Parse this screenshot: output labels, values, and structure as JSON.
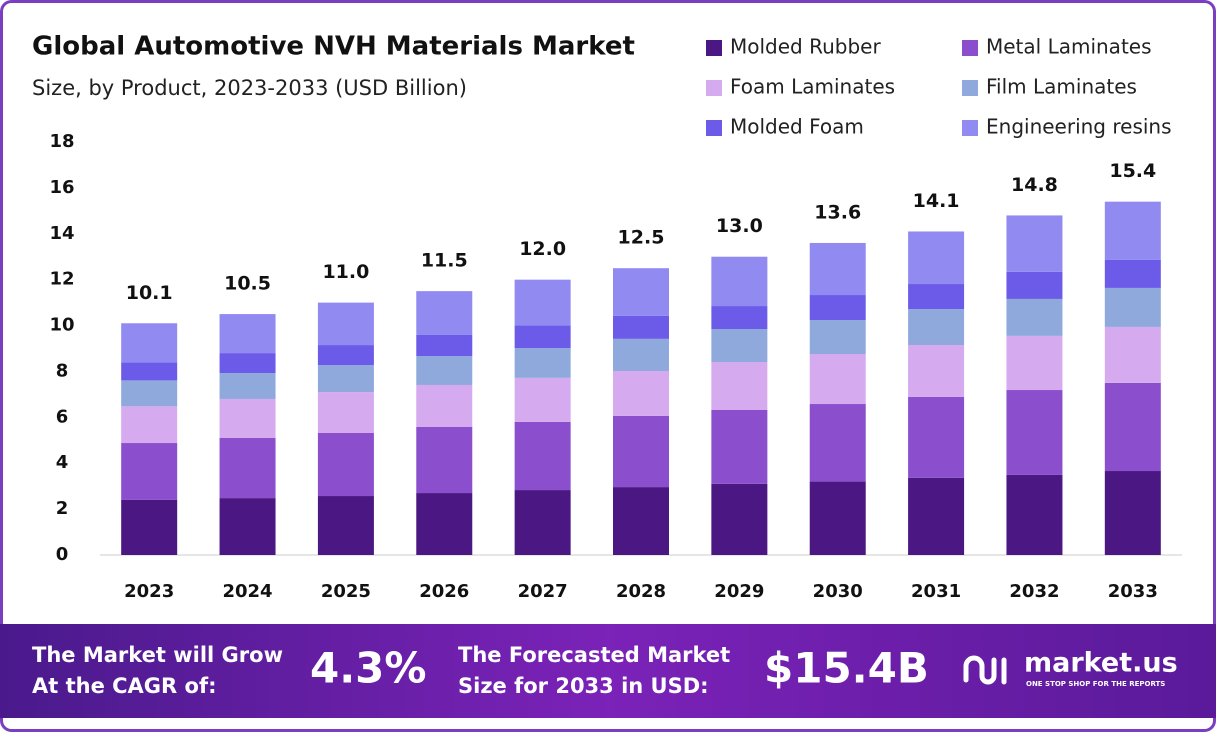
{
  "chart_data": {
    "type": "stacked-bar",
    "title": "Global Automotive NVH Materials Market",
    "subtitle": "Size, by Product, 2023-2033 (USD Billion)",
    "categories": [
      "2023",
      "2024",
      "2025",
      "2026",
      "2027",
      "2028",
      "2029",
      "2030",
      "2031",
      "2032",
      "2033"
    ],
    "series": [
      {
        "name": "Molded Rubber",
        "color": "#4b1883",
        "values": [
          2.4,
          2.48,
          2.57,
          2.7,
          2.83,
          2.96,
          3.1,
          3.2,
          3.36,
          3.49,
          3.66
        ]
      },
      {
        "name": "Metal Laminates",
        "color": "#8b4fcd",
        "values": [
          2.48,
          2.62,
          2.75,
          2.88,
          2.97,
          3.1,
          3.22,
          3.38,
          3.53,
          3.7,
          3.84
        ]
      },
      {
        "name": "Foam Laminates",
        "color": "#d5aaee",
        "values": [
          1.6,
          1.7,
          1.78,
          1.83,
          1.92,
          1.96,
          2.09,
          2.18,
          2.26,
          2.36,
          2.44
        ]
      },
      {
        "name": "Film Laminates",
        "color": "#90a9dd",
        "values": [
          1.13,
          1.13,
          1.18,
          1.26,
          1.3,
          1.4,
          1.44,
          1.48,
          1.57,
          1.61,
          1.7
        ]
      },
      {
        "name": "Molded Foam",
        "color": "#6c5be9",
        "values": [
          0.79,
          0.87,
          0.87,
          0.92,
          0.98,
          1.0,
          1.0,
          1.09,
          1.09,
          1.18,
          1.22
        ]
      },
      {
        "name": "Engineering resins",
        "color": "#908af1",
        "values": [
          1.7,
          1.7,
          1.85,
          1.91,
          2.0,
          2.08,
          2.15,
          2.27,
          2.29,
          2.46,
          2.54
        ]
      }
    ],
    "totals": {
      "values": [
        10.1,
        10.5,
        11.0,
        11.5,
        12.0,
        12.5,
        13.0,
        13.6,
        14.1,
        14.8,
        15.4
      ],
      "value_labels": [
        "10.1",
        "10.5",
        "11.0",
        "11.5",
        "12.0",
        "12.5",
        "13.0",
        "13.6",
        "14.1",
        "14.8",
        "15.4"
      ]
    },
    "ylim": [
      0,
      18
    ],
    "yticks": [
      0,
      2,
      4,
      6,
      8,
      10,
      12,
      14,
      16,
      18
    ],
    "grid": false,
    "legend": "top-right"
  },
  "footer": {
    "cagr_text_1": "The Market will Grow",
    "cagr_text_2": "At the CAGR of:",
    "cagr_value": "4.3%",
    "forecast_text_1": "The Forecasted Market",
    "forecast_text_2": "Size for 2033 in USD:",
    "forecast_value": "$15.4B",
    "brand": "market.us",
    "tagline": "ONE STOP SHOP FOR THE REPORTS"
  }
}
